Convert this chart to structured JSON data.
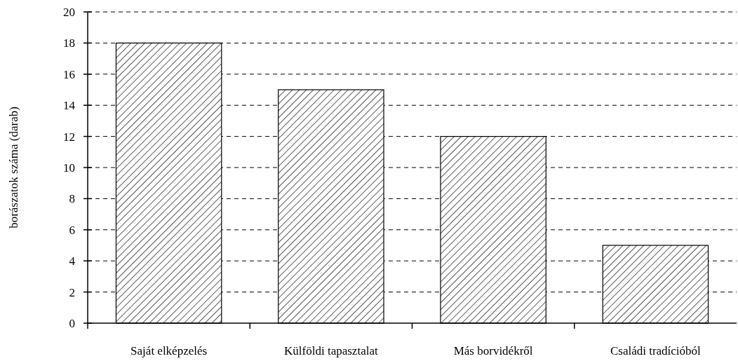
{
  "chart_data": {
    "type": "bar",
    "ylabel": "borászatok száma (darab)",
    "categories": [
      "Saját elképzelés",
      "Külföldi tapasztalat",
      "Más borvidékről",
      "Családi tradícióból"
    ],
    "values": [
      18,
      15,
      12,
      5
    ],
    "color": "#000000",
    "ylim": [
      0,
      20
    ],
    "yticks": [
      0,
      2,
      4,
      6,
      8,
      10,
      12,
      14,
      16,
      18,
      20
    ],
    "grid": "y"
  }
}
